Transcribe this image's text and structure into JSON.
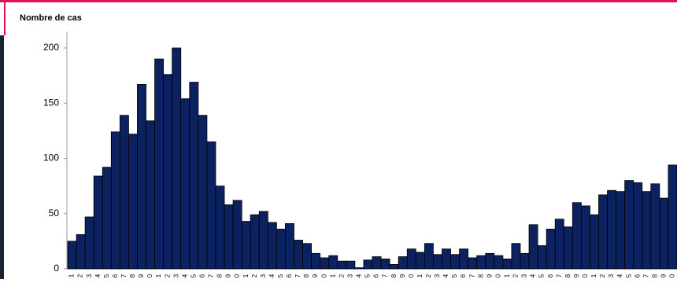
{
  "chart_data": {
    "type": "bar",
    "y_label": "Nombre de cas",
    "categories": [
      "1",
      "2",
      "3",
      "4",
      "5",
      "6",
      "7",
      "8",
      "9",
      "0",
      "1",
      "2",
      "3",
      "4",
      "5",
      "6",
      "7",
      "8",
      "9",
      "0",
      "1",
      "2",
      "3",
      "4",
      "5",
      "6",
      "7",
      "8",
      "9",
      "0",
      "1",
      "2",
      "3",
      "4",
      "5",
      "6",
      "7",
      "8",
      "9",
      "0",
      "1",
      "2",
      "3",
      "4",
      "5",
      "6",
      "7",
      "8",
      "9",
      "0",
      "1",
      "2",
      "3",
      "4",
      "5",
      "6",
      "7",
      "8",
      "9",
      "0",
      "1",
      "2",
      "3",
      "4",
      "5",
      "6",
      "7",
      "8",
      "9",
      "0"
    ],
    "values": [
      25,
      31,
      47,
      84,
      92,
      124,
      139,
      122,
      167,
      134,
      190,
      176,
      200,
      154,
      169,
      139,
      115,
      75,
      58,
      62,
      43,
      49,
      52,
      42,
      36,
      41,
      26,
      23,
      14,
      10,
      12,
      7,
      7,
      1,
      8,
      11,
      9,
      4,
      11,
      18,
      15,
      23,
      13,
      18,
      13,
      18,
      10,
      12,
      14,
      12,
      9,
      23,
      14,
      40,
      21,
      36,
      45,
      38,
      60,
      57,
      49,
      67,
      71,
      70,
      80,
      78,
      70,
      77,
      64,
      94
    ],
    "color": "#0c2160",
    "ylim": [
      0,
      200
    ],
    "yticks": [
      0,
      50,
      100,
      150,
      200
    ],
    "grid": false
  }
}
